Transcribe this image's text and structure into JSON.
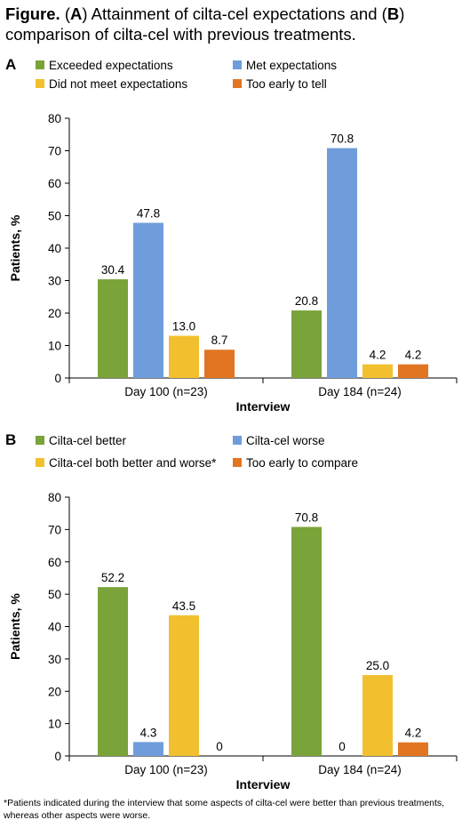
{
  "figure": {
    "title_lead": "Figure.",
    "title_parts": [
      "(",
      "A",
      ") Attainment of cilta-cel expectations and (",
      "B",
      ") comparison of cilta-cel with previous treatments."
    ],
    "footnote": "*Patients indicated during the interview that some aspects of cilta-cel were better than previous treatments, whereas other aspects were worse."
  },
  "chart_data": [
    {
      "panel": "A",
      "type": "bar",
      "categories": [
        "Day 100 (n=23)",
        "Day 184 (n=24)"
      ],
      "series": [
        {
          "name": "Exceeded expectations",
          "color": "#7aa33a",
          "values": [
            30.4,
            20.8
          ],
          "labels": [
            "30.4",
            "20.8"
          ]
        },
        {
          "name": "Met expectations",
          "color": "#6f9ddb",
          "values": [
            47.8,
            70.8
          ],
          "labels": [
            "47.8",
            "70.8"
          ]
        },
        {
          "name": "Did not meet expectations",
          "color": "#f2c02e",
          "values": [
            13.0,
            4.2
          ],
          "labels": [
            "13.0",
            "4.2"
          ]
        },
        {
          "name": "Too early to tell",
          "color": "#e27522",
          "values": [
            8.7,
            4.2
          ],
          "labels": [
            "8.7",
            "4.2"
          ]
        }
      ],
      "xlabel": "Interview",
      "ylabel": "Patients, %",
      "ylim": [
        0,
        80
      ],
      "yticks": [
        0,
        10,
        20,
        30,
        40,
        50,
        60,
        70,
        80
      ],
      "legend": "top",
      "grid": false
    },
    {
      "panel": "B",
      "type": "bar",
      "categories": [
        "Day 100 (n=23)",
        "Day 184 (n=24)"
      ],
      "series": [
        {
          "name": "Cilta-cel better",
          "color": "#7aa33a",
          "values": [
            52.2,
            70.8
          ],
          "labels": [
            "52.2",
            "70.8"
          ]
        },
        {
          "name": "Cilta-cel worse",
          "color": "#6f9ddb",
          "values": [
            4.3,
            0
          ],
          "labels": [
            "4.3",
            "0"
          ]
        },
        {
          "name": "Cilta-cel both better and worse*",
          "color": "#f2c02e",
          "values": [
            43.5,
            25.0
          ],
          "labels": [
            "43.5",
            "25.0"
          ]
        },
        {
          "name": "Too early to compare",
          "color": "#e27522",
          "values": [
            0,
            4.2
          ],
          "labels": [
            "0",
            "4.2"
          ]
        }
      ],
      "xlabel": "Interview",
      "ylabel": "Patients, %",
      "ylim": [
        0,
        80
      ],
      "yticks": [
        0,
        10,
        20,
        30,
        40,
        50,
        60,
        70,
        80
      ],
      "legend": "top",
      "grid": false
    }
  ]
}
